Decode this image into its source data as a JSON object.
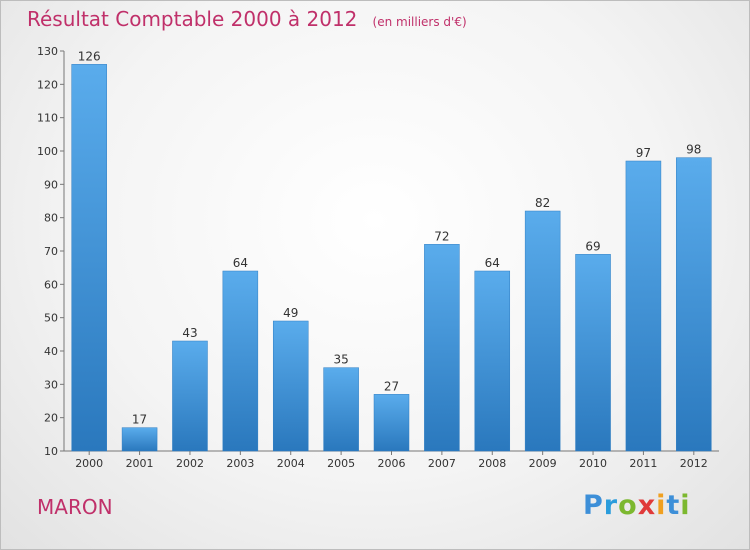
{
  "chart_data": {
    "type": "bar",
    "title": "Résultat Comptable 2000 à 2012",
    "subtitle": "(en milliers d'€)",
    "categories": [
      "2000",
      "2001",
      "2002",
      "2003",
      "2004",
      "2005",
      "2006",
      "2007",
      "2008",
      "2009",
      "2010",
      "2011",
      "2012"
    ],
    "values": [
      126,
      17,
      43,
      64,
      49,
      35,
      27,
      72,
      64,
      82,
      69,
      97,
      98
    ],
    "data_labels": [
      "126",
      "17",
      "43",
      "64",
      "49",
      "35",
      "27",
      "72",
      "64",
      "82",
      "69",
      "97",
      "98"
    ],
    "ylim": [
      10,
      130
    ],
    "yticks": [
      10,
      20,
      30,
      40,
      50,
      60,
      70,
      80,
      90,
      100,
      110,
      120,
      130
    ],
    "xlabel": "",
    "ylabel": "",
    "grid": false,
    "legend": "none",
    "bar_color": "#3d93d8"
  },
  "place_name": "MARON",
  "logo": {
    "letters": [
      "P",
      "r",
      "o",
      "x",
      "i",
      "t",
      "i"
    ],
    "colors": [
      "#3d8fd8",
      "#2a9cdc",
      "#7cb82f",
      "#e03a3a",
      "#f0a020",
      "#3d8fd8",
      "#7cb82f"
    ]
  },
  "colors": {
    "title": "#c0306a",
    "bar": "#3d93d8"
  }
}
